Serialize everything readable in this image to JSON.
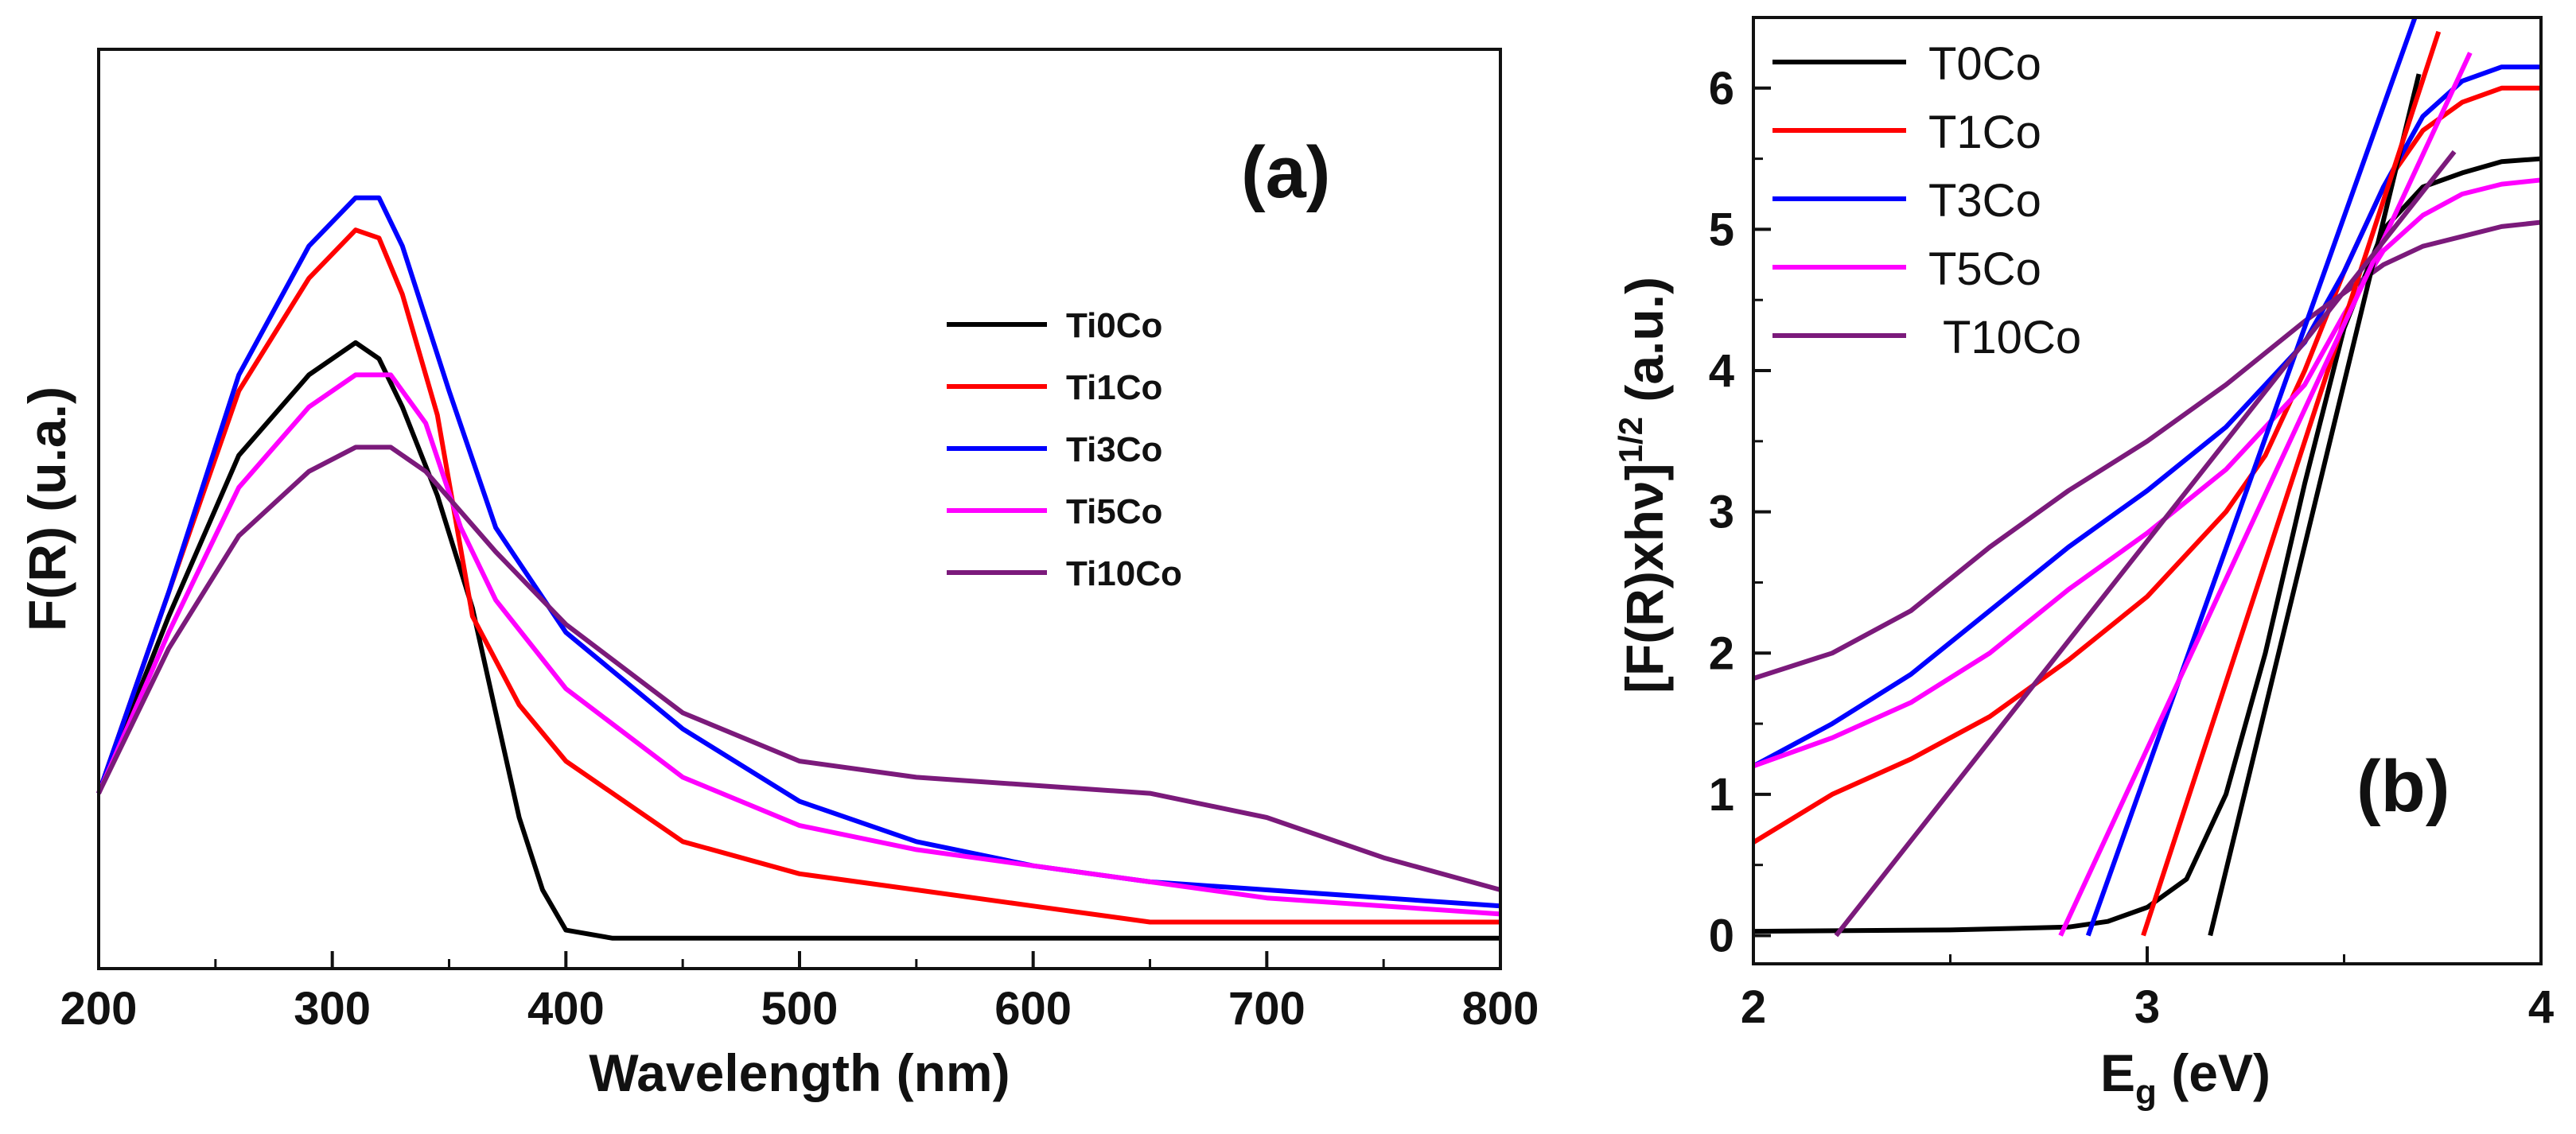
{
  "chart_data": [
    {
      "panel": "(a)",
      "type": "line",
      "title": "",
      "xlabel": "Wavelength (nm)",
      "ylabel": "F(R) (u.a.)",
      "xlim": [
        200,
        800
      ],
      "ylim": [
        0,
        100
      ],
      "xticks": [
        200,
        300,
        400,
        500,
        600,
        700,
        800
      ],
      "xtick_labels": [
        "200",
        "300",
        "400",
        "500",
        "600",
        "700",
        "800"
      ],
      "grid": false,
      "legend_position": "right-middle",
      "series": [
        {
          "name": "Ti0Co",
          "color": "#000000",
          "x": [
            200,
            230,
            260,
            290,
            310,
            320,
            330,
            345,
            360,
            370,
            380,
            390,
            400,
            420,
            500,
            600,
            700,
            800
          ],
          "y": [
            20,
            42,
            62,
            72,
            76,
            74,
            68,
            57,
            43,
            30,
            17,
            8,
            3,
            2,
            2,
            2,
            2,
            2
          ]
        },
        {
          "name": "Ti1Co",
          "color": "#ff0000",
          "x": [
            200,
            230,
            260,
            290,
            310,
            320,
            330,
            345,
            360,
            380,
            400,
            450,
            500,
            550,
            600,
            650,
            700,
            800
          ],
          "y": [
            20,
            45,
            70,
            84,
            90,
            89,
            82,
            67,
            42,
            31,
            24,
            14,
            10,
            8,
            6,
            4,
            4,
            4
          ]
        },
        {
          "name": "Ti3Co",
          "color": "#0000ff",
          "x": [
            200,
            230,
            260,
            290,
            310,
            320,
            330,
            350,
            370,
            400,
            450,
            500,
            550,
            600,
            650,
            700,
            800
          ],
          "y": [
            20,
            45,
            72,
            88,
            94,
            94,
            88,
            70,
            53,
            40,
            28,
            19,
            14,
            11,
            9,
            8,
            6
          ]
        },
        {
          "name": "Ti5Co",
          "color": "#ff00ff",
          "x": [
            200,
            230,
            260,
            290,
            310,
            325,
            340,
            355,
            370,
            400,
            450,
            500,
            550,
            600,
            650,
            700,
            800
          ],
          "y": [
            20,
            40,
            58,
            68,
            72,
            72,
            66,
            53,
            44,
            33,
            22,
            16,
            13,
            11,
            9,
            7,
            5
          ]
        },
        {
          "name": "Ti10Co",
          "color": "#7b1a7b",
          "x": [
            200,
            230,
            260,
            290,
            310,
            325,
            340,
            370,
            400,
            450,
            500,
            550,
            600,
            650,
            700,
            750,
            800
          ],
          "y": [
            20,
            38,
            52,
            60,
            63,
            63,
            60,
            50,
            41,
            30,
            24,
            22,
            21,
            20,
            17,
            12,
            8
          ]
        }
      ]
    },
    {
      "panel": "(b)",
      "type": "line",
      "title": "",
      "xlabel_main": "E",
      "xlabel_sub": "g",
      "xlabel_rest": " (eV)",
      "ylabel_main": "[F(R)xhν]",
      "ylabel_sup": "1/2",
      "ylabel_rest": " (a.u.)",
      "xlim": [
        2,
        4
      ],
      "ylim": [
        -0.2,
        6.5
      ],
      "xticks": [
        2,
        3,
        4
      ],
      "xtick_labels": [
        "2",
        "3",
        "4"
      ],
      "yticks": [
        0,
        1,
        2,
        3,
        4,
        5,
        6
      ],
      "ytick_labels": [
        "0",
        "1",
        "2",
        "3",
        "4",
        "5",
        "6"
      ],
      "grid": false,
      "legend_position": "top-left",
      "series": [
        {
          "name": "T0Co",
          "color": "#000000",
          "x": [
            2.0,
            2.5,
            2.8,
            2.9,
            3.0,
            3.1,
            3.2,
            3.3,
            3.4,
            3.5,
            3.6,
            3.7,
            3.8,
            3.9,
            4.0
          ],
          "y": [
            0.03,
            0.04,
            0.06,
            0.1,
            0.2,
            0.4,
            1.0,
            2.0,
            3.2,
            4.3,
            5.0,
            5.3,
            5.4,
            5.48,
            5.5
          ]
        },
        {
          "name": "T1Co",
          "color": "#ff0000",
          "x": [
            2.0,
            2.2,
            2.4,
            2.6,
            2.8,
            3.0,
            3.1,
            3.2,
            3.3,
            3.4,
            3.5,
            3.6,
            3.7,
            3.8,
            3.9,
            4.0
          ],
          "y": [
            0.66,
            1.0,
            1.25,
            1.55,
            1.95,
            2.4,
            2.7,
            3.0,
            3.4,
            4.0,
            4.7,
            5.3,
            5.7,
            5.9,
            6.0,
            6.0
          ]
        },
        {
          "name": "T3Co",
          "color": "#0000ff",
          "x": [
            2.0,
            2.2,
            2.4,
            2.6,
            2.8,
            3.0,
            3.2,
            3.4,
            3.5,
            3.6,
            3.7,
            3.8,
            3.9,
            4.0
          ],
          "y": [
            1.2,
            1.5,
            1.85,
            2.3,
            2.75,
            3.15,
            3.6,
            4.2,
            4.7,
            5.3,
            5.8,
            6.05,
            6.15,
            6.15
          ]
        },
        {
          "name": "T5Co",
          "color": "#ff00ff",
          "x": [
            2.0,
            2.2,
            2.4,
            2.6,
            2.8,
            3.0,
            3.2,
            3.4,
            3.5,
            3.6,
            3.7,
            3.8,
            3.9,
            4.0
          ],
          "y": [
            1.2,
            1.4,
            1.65,
            2.0,
            2.45,
            2.85,
            3.3,
            3.9,
            4.4,
            4.85,
            5.1,
            5.25,
            5.32,
            5.35
          ]
        },
        {
          "name": "T10Co",
          "color": "#7b1a7b",
          "x": [
            2.0,
            2.2,
            2.4,
            2.6,
            2.8,
            3.0,
            3.2,
            3.4,
            3.5,
            3.6,
            3.7,
            3.8,
            3.9,
            4.0
          ],
          "y": [
            1.82,
            2.0,
            2.3,
            2.75,
            3.15,
            3.5,
            3.9,
            4.35,
            4.55,
            4.75,
            4.88,
            4.95,
            5.02,
            5.05
          ]
        }
      ],
      "fit_lines": [
        {
          "name": "T0Co fit",
          "color": "#000000",
          "x": [
            3.16,
            3.69
          ],
          "y": [
            0,
            6.1
          ]
        },
        {
          "name": "T1Co fit",
          "color": "#ff0000",
          "x": [
            2.99,
            3.74
          ],
          "y": [
            0,
            6.4
          ]
        },
        {
          "name": "T3Co fit",
          "color": "#0000ff",
          "x": [
            2.85,
            3.68
          ],
          "y": [
            0,
            6.5
          ]
        },
        {
          "name": "T5Co fit",
          "color": "#ff00ff",
          "x": [
            2.78,
            3.82
          ],
          "y": [
            0,
            6.25
          ]
        },
        {
          "name": "T10Co fit",
          "color": "#7b1a7b",
          "x": [
            2.21,
            3.78
          ],
          "y": [
            0,
            5.55
          ]
        }
      ]
    }
  ]
}
